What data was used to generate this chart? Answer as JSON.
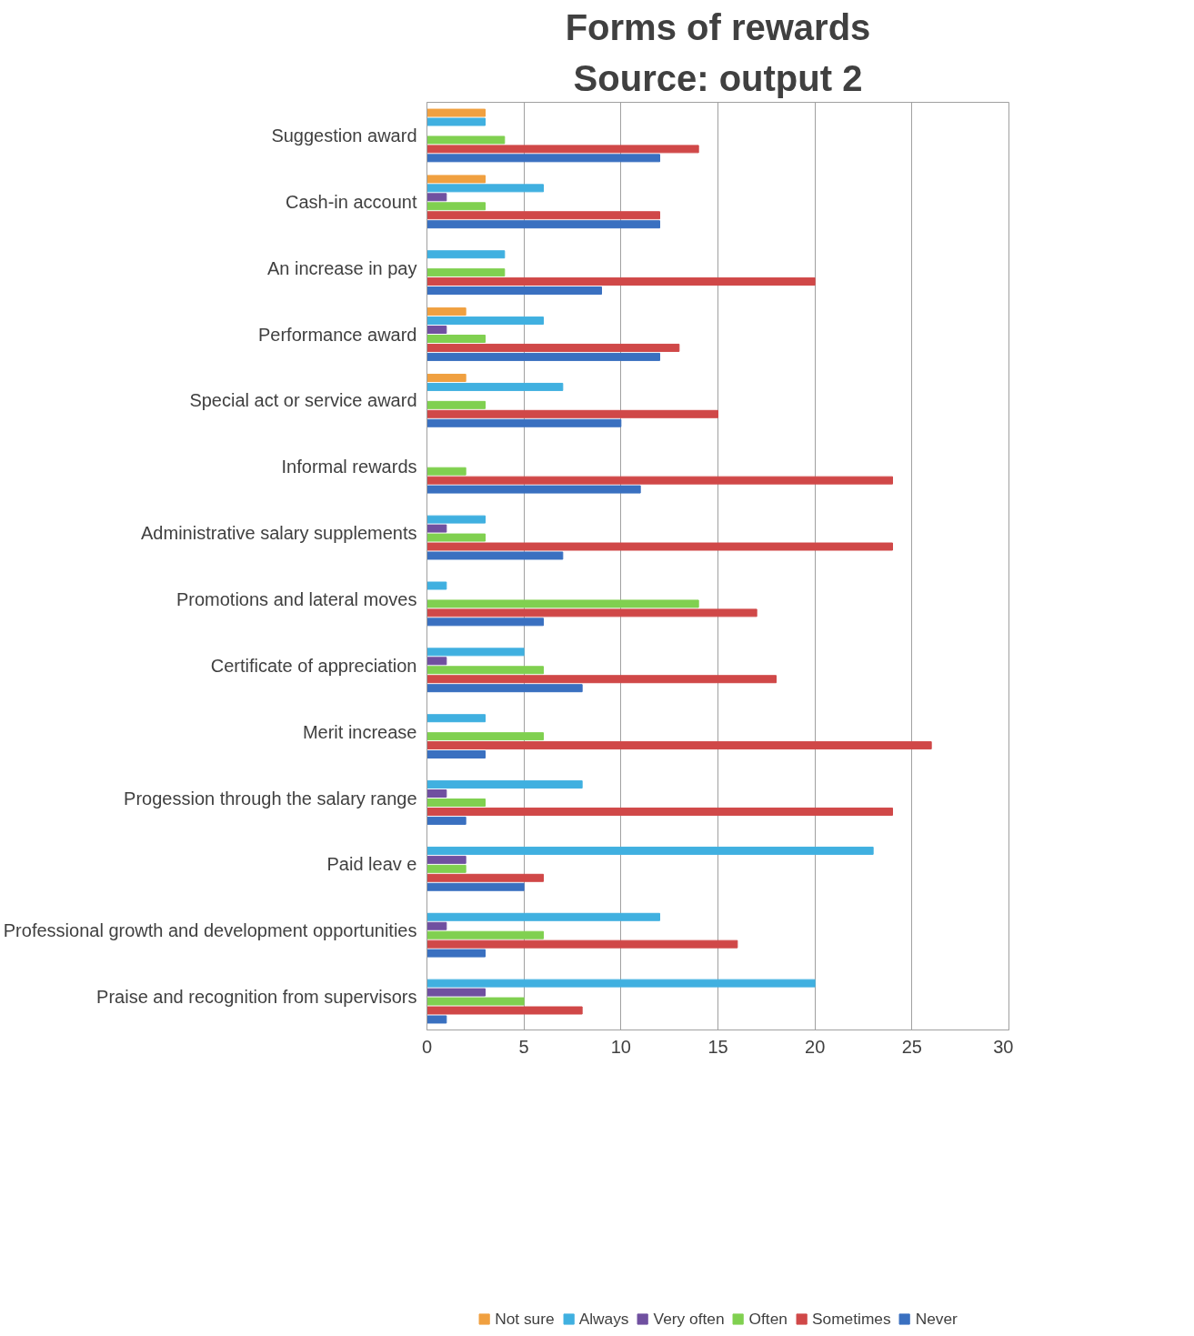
{
  "chart_data": {
    "type": "bar",
    "orientation": "horizontal",
    "title": "Forms of rewards",
    "subtitle": "Source: output 2",
    "categories": [
      "Suggestion award",
      "Cash-in account",
      "An increase in pay",
      "Performance award",
      "Special act or service award",
      "Informal rewards",
      "Administrative salary supplements",
      "Promotions and lateral moves",
      "Certificate of appreciation",
      "Merit increase",
      "Progession through the salary range",
      "Paid leav e",
      "Professional growth and development opportunities",
      "Praise and recognition from supervisors"
    ],
    "series": [
      {
        "name": "Not sure",
        "color": "#f0a040",
        "values": [
          3,
          3,
          0,
          2,
          2,
          0,
          0,
          0,
          0,
          0,
          0,
          0,
          0,
          0
        ]
      },
      {
        "name": "Always",
        "color": "#40b0e0",
        "values": [
          3,
          6,
          4,
          6,
          7,
          0,
          3,
          1,
          5,
          3,
          8,
          23,
          12,
          20
        ]
      },
      {
        "name": "Very often",
        "color": "#7050a0",
        "values": [
          0,
          1,
          0,
          1,
          0,
          0,
          1,
          0,
          1,
          0,
          1,
          2,
          1,
          3
        ]
      },
      {
        "name": "Often",
        "color": "#80d050",
        "values": [
          4,
          3,
          4,
          3,
          3,
          2,
          3,
          14,
          6,
          6,
          3,
          2,
          6,
          5
        ]
      },
      {
        "name": "Sometimes",
        "color": "#d04848",
        "values": [
          14,
          12,
          20,
          13,
          15,
          24,
          24,
          17,
          18,
          26,
          24,
          6,
          16,
          8
        ]
      },
      {
        "name": "Never",
        "color": "#3a70c0",
        "values": [
          12,
          12,
          9,
          12,
          10,
          11,
          7,
          6,
          8,
          3,
          2,
          5,
          3,
          1
        ]
      }
    ],
    "xlim": [
      0,
      30
    ],
    "xticks": [
      0,
      5,
      10,
      15,
      20,
      25,
      30
    ],
    "grid": "x",
    "legend": "bottom"
  }
}
